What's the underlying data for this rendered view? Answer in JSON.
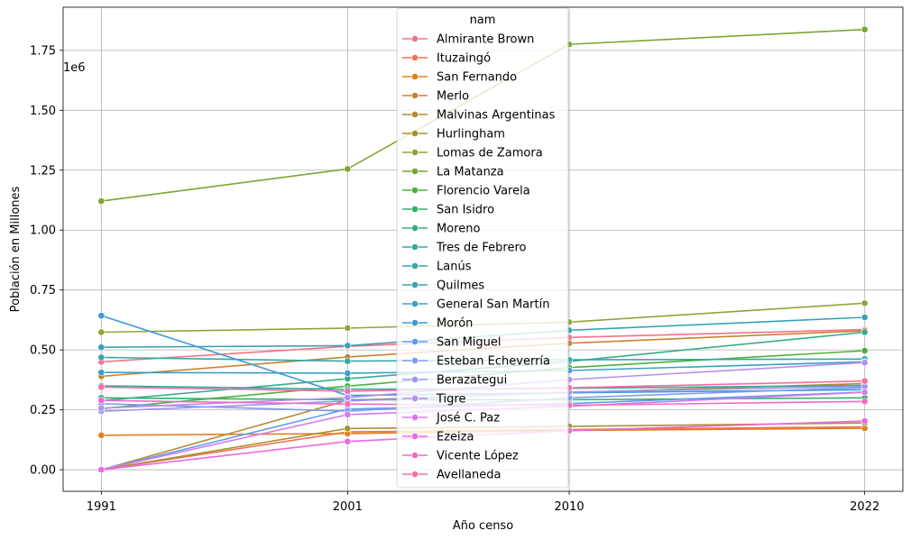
{
  "chart_data": {
    "type": "line",
    "title": "",
    "xlabel": "Año censo",
    "ylabel": "Población en Millones",
    "y_offset_label": "1e6",
    "x": [
      1991,
      2001,
      2010,
      2022
    ],
    "x_tick_labels": [
      "1991",
      "2001",
      "2010",
      "2022"
    ],
    "ylim": [
      -0.09,
      1.93
    ],
    "y_ticks": [
      0.0,
      0.25,
      0.5,
      0.75,
      1.0,
      1.25,
      1.5,
      1.75
    ],
    "y_tick_labels": [
      "0.00",
      "0.25",
      "0.50",
      "0.75",
      "1.00",
      "1.25",
      "1.50",
      "1.75"
    ],
    "grid": true,
    "legend_title": "nam",
    "legend_position": "top-center",
    "series": [
      {
        "name": "Almirante Brown",
        "color": "#f77189",
        "values": [
          0.45,
          0.515,
          0.552,
          0.585
        ]
      },
      {
        "name": "Ituzaingó",
        "color": "#ef7252",
        "values": [
          0.0,
          0.158,
          0.168,
          0.179
        ]
      },
      {
        "name": "San Fernando",
        "color": "#e1801d",
        "values": [
          0.144,
          0.151,
          0.164,
          0.173
        ]
      },
      {
        "name": "Merlo",
        "color": "#c8832e",
        "values": [
          0.39,
          0.47,
          0.528,
          0.58
        ]
      },
      {
        "name": "Malvinas Argentinas",
        "color": "#b68b31",
        "values": [
          0.0,
          0.29,
          0.322,
          0.36
        ]
      },
      {
        "name": "Hurlingham",
        "color": "#a59332",
        "values": [
          0.0,
          0.172,
          0.181,
          0.195
        ]
      },
      {
        "name": "Lomas de Zamora",
        "color": "#93a33a",
        "values": [
          0.574,
          0.591,
          0.616,
          0.695
        ]
      },
      {
        "name": "La Matanza",
        "color": "#7aa62f",
        "values": [
          1.121,
          1.255,
          1.775,
          1.837
        ]
      },
      {
        "name": "Florencio Varela",
        "color": "#4fb03d",
        "values": [
          0.255,
          0.349,
          0.426,
          0.497
        ]
      },
      {
        "name": "San Isidro",
        "color": "#32b166",
        "values": [
          0.3,
          0.292,
          0.292,
          0.3
        ]
      },
      {
        "name": "Moreno",
        "color": "#35ac89",
        "values": [
          0.288,
          0.38,
          0.452,
          0.574
        ]
      },
      {
        "name": "Tres de Febrero",
        "color": "#35a99c",
        "values": [
          0.35,
          0.336,
          0.34,
          0.352
        ]
      },
      {
        "name": "Lanús",
        "color": "#37a6a8",
        "values": [
          0.469,
          0.453,
          0.459,
          0.462
        ]
      },
      {
        "name": "Quilmes",
        "color": "#39a3b5",
        "values": [
          0.511,
          0.518,
          0.582,
          0.636
        ]
      },
      {
        "name": "General San Martín",
        "color": "#3a9fc4",
        "values": [
          0.406,
          0.403,
          0.414,
          0.45
        ]
      },
      {
        "name": "Morón",
        "color": "#3e9bd6",
        "values": [
          0.643,
          0.31,
          0.321,
          0.334
        ]
      },
      {
        "name": "San Miguel",
        "color": "#5b9ef3",
        "values": [
          0.0,
          0.253,
          0.276,
          0.324
        ]
      },
      {
        "name": "Esteban Echeverría",
        "color": "#7f9cf1",
        "values": [
          0.276,
          0.244,
          0.3,
          0.343
        ]
      },
      {
        "name": "Berazategui",
        "color": "#9d95f0",
        "values": [
          0.244,
          0.287,
          0.324,
          0.348
        ]
      },
      {
        "name": "Tigre",
        "color": "#b48ef0",
        "values": [
          0.257,
          0.301,
          0.376,
          0.447
        ]
      },
      {
        "name": "José C. Paz",
        "color": "#d77ae9",
        "values": [
          0.0,
          0.23,
          0.265,
          0.323
        ]
      },
      {
        "name": "Ezeiza",
        "color": "#ed68e1",
        "values": [
          0.0,
          0.118,
          0.163,
          0.203
        ]
      },
      {
        "name": "Vicente López",
        "color": "#f26ac3",
        "values": [
          0.289,
          0.274,
          0.269,
          0.285
        ]
      },
      {
        "name": "Avellaneda",
        "color": "#f56ea5",
        "values": [
          0.345,
          0.328,
          0.342,
          0.37
        ]
      }
    ]
  }
}
